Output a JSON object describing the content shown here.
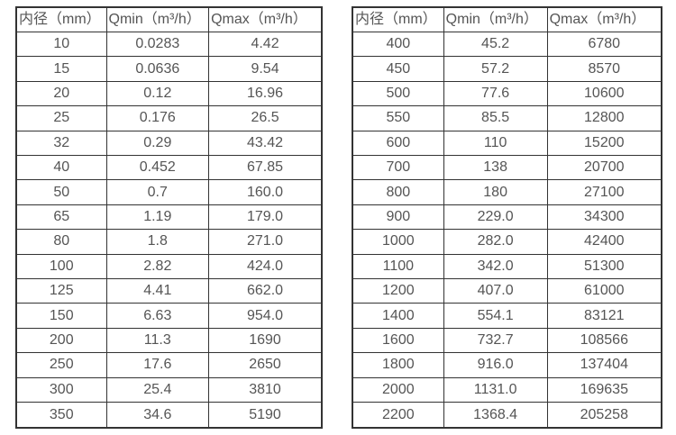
{
  "tables": [
    {
      "name": "small-diameter-flow-spec",
      "headers": [
        "内径（mm）",
        "Qmin（m³/h）",
        "Qmax（m³/h）"
      ],
      "columns": [
        "diameter",
        "qmin",
        "qmax"
      ],
      "rows": [
        [
          "10",
          "0.0283",
          "4.42"
        ],
        [
          "15",
          "0.0636",
          "9.54"
        ],
        [
          "20",
          "0.12",
          "16.96"
        ],
        [
          "25",
          "0.176",
          "26.5"
        ],
        [
          "32",
          "0.29",
          "43.42"
        ],
        [
          "40",
          "0.452",
          "67.85"
        ],
        [
          "50",
          "0.7",
          "160.0"
        ],
        [
          "65",
          "1.19",
          "179.0"
        ],
        [
          "80",
          "1.8",
          "271.0"
        ],
        [
          "100",
          "2.82",
          "424.0"
        ],
        [
          "125",
          "4.41",
          "662.0"
        ],
        [
          "150",
          "6.63",
          "954.0"
        ],
        [
          "200",
          "11.3",
          "1690"
        ],
        [
          "250",
          "17.6",
          "2650"
        ],
        [
          "300",
          "25.4",
          "3810"
        ],
        [
          "350",
          "34.6",
          "5190"
        ]
      ]
    },
    {
      "name": "large-diameter-flow-spec",
      "headers": [
        "内径（mm）",
        "Qmin（m³/h）",
        "Qmax（m³/h）"
      ],
      "columns": [
        "diameter",
        "qmin",
        "qmax"
      ],
      "rows": [
        [
          "400",
          "45.2",
          "6780"
        ],
        [
          "450",
          "57.2",
          "8570"
        ],
        [
          "500",
          "77.6",
          "10600"
        ],
        [
          "550",
          "85.5",
          "12800"
        ],
        [
          "600",
          "110",
          "15200"
        ],
        [
          "700",
          "138",
          "20700"
        ],
        [
          "800",
          "180",
          "27100"
        ],
        [
          "900",
          "229.0",
          "34300"
        ],
        [
          "1000",
          "282.0",
          "42400"
        ],
        [
          "1100",
          "342.0",
          "51300"
        ],
        [
          "1200",
          "407.0",
          "61000"
        ],
        [
          "1400",
          "554.1",
          "83121"
        ],
        [
          "1600",
          "732.7",
          "108566"
        ],
        [
          "1800",
          "916.0",
          "137404"
        ],
        [
          "2000",
          "1131.0",
          "169635"
        ],
        [
          "2200",
          "1368.4",
          "205258"
        ]
      ]
    }
  ],
  "colors": {
    "border": "#333333",
    "text": "#555555",
    "background": "#ffffff"
  }
}
